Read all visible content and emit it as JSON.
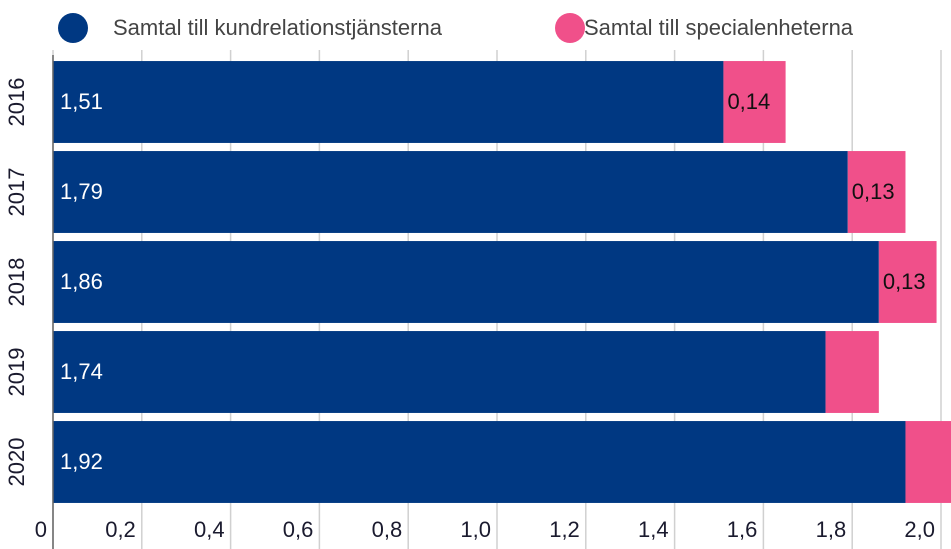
{
  "chart_data": {
    "type": "stacked_barh",
    "categories": [
      "2016",
      "2017",
      "2018",
      "2019",
      "2020"
    ],
    "series": [
      {
        "name": "Samtal till kundrelationstjänsterna",
        "color": "#003882",
        "values": [
          1.51,
          1.79,
          1.86,
          1.74,
          1.92
        ],
        "value_labels": [
          "1,51",
          "1,79",
          "1,86",
          "1,74",
          "1,92"
        ]
      },
      {
        "name": "Samtal till specialenheterna",
        "color": "#f0508a",
        "values": [
          0.14,
          0.13,
          0.13,
          0.12,
          0.12
        ],
        "value_labels": [
          "0,14",
          "0,13",
          "0,13",
          null,
          null
        ]
      }
    ],
    "xlim": [
      0,
      2.0
    ],
    "xticks": [
      0,
      {
        "value": 0.2,
        "label": "0,2"
      },
      {
        "value": 0.4,
        "label": "0,4"
      },
      {
        "value": 0.6,
        "label": "0,6"
      },
      {
        "value": 0.8,
        "label": "0,8"
      },
      {
        "value": 1.0,
        "label": "1,0"
      },
      {
        "value": 1.2,
        "label": "1,2"
      },
      {
        "value": 1.4,
        "label": "1,4"
      },
      {
        "value": 1.6,
        "label": "1,6"
      },
      {
        "value": 1.8,
        "label": "1,8"
      },
      {
        "value": 2.0,
        "label": "2,0"
      }
    ],
    "grid": true
  }
}
